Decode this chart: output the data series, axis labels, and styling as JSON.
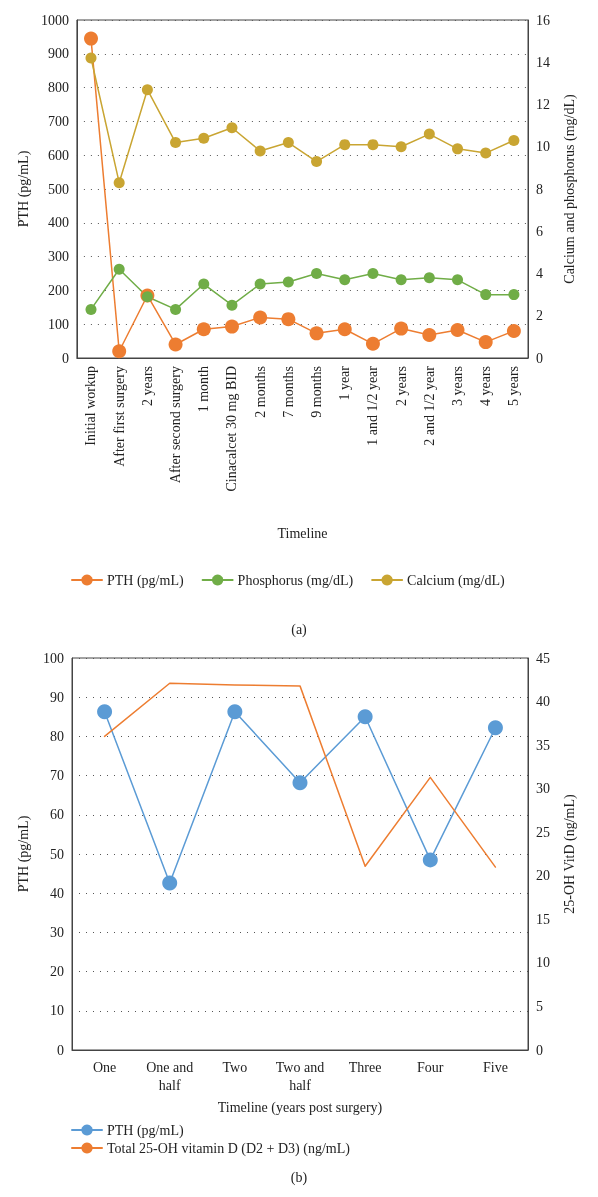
{
  "chart_data": [
    {
      "type": "line",
      "xlabel": "Timeline",
      "ylabel": "PTH (pg/mL)",
      "y2label": "Calcium and phosphorus (mg/dL)",
      "categories": [
        "Initial workup",
        "After first surgery",
        "2 years",
        "After second surgery",
        "1 month",
        "Cinacalcet 30 mg BID",
        "2 months",
        "7 months",
        "9 months",
        "1 year",
        "1 and 1/2 year",
        "2 years",
        "2 and 1/2 year",
        "3 years",
        "4 years",
        "5 years"
      ],
      "series": [
        {
          "name": "PTH (pg/mL)",
          "color": "#ed7d31",
          "values": [
            945,
            20,
            185,
            40,
            85,
            93,
            120,
            115,
            73,
            85,
            42,
            87,
            68,
            83,
            47,
            80
          ]
        },
        {
          "name": "Phosphorus (mg/dL)",
          "color": "#70ad47",
          "axis": "y2",
          "values": [
            2.3,
            4.2,
            2.9,
            2.3,
            3.5,
            2.5,
            3.5,
            3.6,
            4.0,
            3.7,
            4.0,
            3.7,
            3.8,
            3.7,
            3.0,
            3.0
          ]
        },
        {
          "name": "Calcium (mg/dL)",
          "color": "#c9a532",
          "axis": "y2",
          "values": [
            14.2,
            8.3,
            12.7,
            10.2,
            10.4,
            10.9,
            9.8,
            10.2,
            9.3,
            10.1,
            10.1,
            10.0,
            10.6,
            9.9,
            9.7,
            10.3
          ]
        }
      ],
      "ylim": [
        0,
        1000
      ],
      "yticks": [
        0,
        100,
        200,
        300,
        400,
        500,
        600,
        700,
        800,
        900,
        1000
      ],
      "y2lim": [
        0,
        16
      ],
      "y2ticks": [
        0,
        2,
        4,
        6,
        8,
        10,
        12,
        14,
        16
      ],
      "grid": "y",
      "marker": "circle",
      "legend": "bottom",
      "annotations": [
        "(a)"
      ]
    },
    {
      "type": "line",
      "xlabel": "Timeline (years post surgery)",
      "ylabel": "PTH (pg/mL)",
      "y2label": "25-OH VitD (ng/mL)",
      "categories": [
        "One",
        "One and\nhalf",
        "Two",
        "Two and\nhalf",
        "Three",
        "Four",
        "Five"
      ],
      "series": [
        {
          "name": "PTH (pg/mL)",
          "color": "#5b9bd5",
          "values": [
            86.3,
            42.6,
            86.3,
            68.2,
            85,
            48.5,
            82.2
          ]
        },
        {
          "name": "Total 25-OH vitamin D (D2 + D3) (ng/mL)",
          "color": "#ed7d31",
          "axis": "y2",
          "marker": "none",
          "values": [
            36,
            42.1,
            41.9,
            41.8,
            21.1,
            31.3,
            21.0
          ]
        }
      ],
      "ylim": [
        0,
        100
      ],
      "yticks": [
        0,
        10,
        20,
        30,
        40,
        50,
        60,
        70,
        80,
        90,
        100
      ],
      "y2lim": [
        0,
        45
      ],
      "y2ticks": [
        0,
        5,
        10,
        15,
        20,
        25,
        30,
        35,
        40,
        45
      ],
      "grid": "y",
      "marker": "circle",
      "legend": "bottom",
      "annotations": [
        "(b)"
      ]
    }
  ]
}
